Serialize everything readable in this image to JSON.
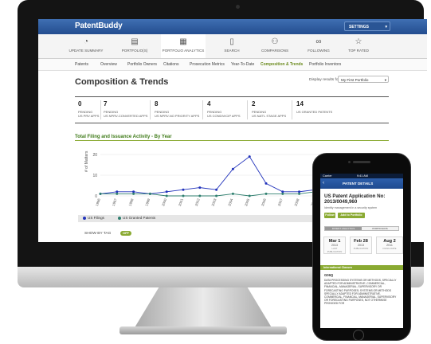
{
  "app": {
    "logo": "PatentBuddy",
    "settings_label": "SETTINGS"
  },
  "main_nav": [
    {
      "label": "UPDATE SUMMARY",
      "icon": "gauge-icon"
    },
    {
      "label": "PORTFOLIO(S)",
      "icon": "folder-icon"
    },
    {
      "label": "PORTFOLIO ANALYTICS",
      "icon": "analytics-icon"
    },
    {
      "label": "SEARCH",
      "icon": "document-search-icon"
    },
    {
      "label": "COMPARISONS",
      "icon": "people-icon"
    },
    {
      "label": "FOLLOWING",
      "icon": "binoculars-icon"
    },
    {
      "label": "TOP RATED",
      "icon": "star-icon"
    }
  ],
  "sub_nav": [
    "Patents",
    "Overview",
    "Portfolio Owners",
    "Citations",
    "Prosecution Metrics",
    "Year-To-Date",
    "Composition & Trends",
    "Portfolio Inventors"
  ],
  "page": {
    "title": "Composition & Trends",
    "display_label": "Display results for:",
    "display_value": "My First Portfolio"
  },
  "stats": [
    {
      "value": "0",
      "label": "PENDING\nUS PRV APPS"
    },
    {
      "value": "7",
      "label": "PENDING\nUS NPRV-CONVERTED APPS"
    },
    {
      "value": "8",
      "label": "PENDING\nUS NPRV-NO PRIORITY APPS"
    },
    {
      "value": "4",
      "label": "PENDING\nUS CONDIVICIP APPS"
    },
    {
      "value": "2",
      "label": "PENDING\nUS NAT'L STAGE APPS"
    },
    {
      "value": "14",
      "label": "US GRANTED PATENTS"
    }
  ],
  "chart_section": {
    "title": "Total Filing and Issuance Activity - By Year",
    "show_by_tag": "SHOW BY TAG",
    "toggle": "OFF"
  },
  "chart_data": {
    "type": "line",
    "title": "Total Filing and Issuance Activity - By Year",
    "ylabel": "# of Matters",
    "ylim": [
      0,
      20
    ],
    "yticks": [
      "20",
      "10",
      "0"
    ],
    "categories": [
      "1996",
      "1997",
      "1998",
      "1999",
      "2000",
      "2001",
      "2002",
      "2003",
      "2004",
      "2005",
      "2006",
      "2007",
      "2008",
      "2009",
      "2010",
      "2011"
    ],
    "x_tick_labels": [
      "1996",
      "1997",
      "1998",
      "1999",
      "2000",
      "2001",
      "2002",
      "2003",
      "2004",
      "2005",
      "2006",
      "2007",
      "2008",
      "2009",
      "2010",
      "2011"
    ],
    "series": [
      {
        "name": "US Filings",
        "color": "#2233bb",
        "values": [
          1,
          2,
          2,
          1,
          2,
          3,
          4,
          3,
          13,
          19,
          6,
          2,
          2,
          3,
          3,
          1
        ]
      },
      {
        "name": "US Granted Patents",
        "color": "#2f7f6f",
        "values": [
          1,
          1,
          1,
          1,
          0,
          0,
          0,
          0,
          1,
          0,
          1,
          1,
          1,
          2,
          1,
          1
        ]
      }
    ],
    "grid": true,
    "legend": "bottom"
  },
  "phone": {
    "carrier": "Carrier",
    "time": "9:41 AM",
    "back": "‹",
    "header": "PATENT DETAILS",
    "heading": "US Patent Application No: 2013/0049,960",
    "subtitle": "Identity management in a security system",
    "buttons": [
      "Follow",
      "Add to Portfolio"
    ],
    "tabs": [
      "PATENT ANALYTICS",
      "PORTFOLIOS"
    ],
    "dates": [
      {
        "day": "Mar 1",
        "year": "2013",
        "type": "LAST PUBLICATION"
      },
      {
        "day": "Feb 28",
        "year": "2013",
        "type": "PUBLICATION"
      },
      {
        "day": "Aug 2",
        "year": "2011",
        "type": "FILING DATE"
      }
    ],
    "class_heading": "International Classes",
    "class_code": "G06Q",
    "class_desc": "DATA PROCESSING SYSTEMS OR METHODS, SPECIALLY ADAPTED FOR ADMINISTRATIVE, COMMERCIAL, FINANCIAL, MANAGERIAL, SUPERVISORY OR FORECASTING PURPOSES; SYSTEMS OR METHODS SPECIALLY ADAPTED FOR ADMINISTRATIVE, COMMERCIAL, FINANCIAL, MANAGERIAL, SUPERVISORY OR FORECASTING PURPOSES, NOT OTHERWISE PROVIDED FOR"
  }
}
